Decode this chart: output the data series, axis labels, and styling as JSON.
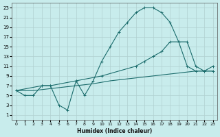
{
  "xlabel": "Humidex (Indice chaleur)",
  "background_color": "#c8ecec",
  "grid_color": "#b0d0d0",
  "line_color": "#1a6b6b",
  "xlim": [
    -0.5,
    23.5
  ],
  "ylim": [
    0,
    24
  ],
  "xticks": [
    0,
    1,
    2,
    3,
    4,
    5,
    6,
    7,
    8,
    9,
    10,
    11,
    12,
    13,
    14,
    15,
    16,
    17,
    18,
    19,
    20,
    21,
    22,
    23
  ],
  "yticks": [
    1,
    3,
    5,
    7,
    9,
    11,
    13,
    15,
    17,
    19,
    21,
    23
  ],
  "line1_x": [
    0,
    1,
    2,
    3,
    4,
    5,
    6,
    7,
    8,
    9,
    10,
    11,
    12,
    13,
    14,
    15,
    16,
    17,
    18,
    19,
    20,
    21,
    22,
    23
  ],
  "line1_y": [
    6,
    5,
    5,
    7,
    7,
    3,
    2,
    8,
    5,
    8,
    12,
    15,
    18,
    20,
    22,
    23,
    23,
    22,
    20,
    16,
    11,
    10,
    10,
    11
  ],
  "line2_x": [
    0,
    3,
    4,
    7,
    10,
    14,
    15,
    16,
    17,
    18,
    19,
    20,
    21,
    22,
    23
  ],
  "line2_y": [
    6,
    7,
    7,
    8,
    9,
    11,
    12,
    13,
    14,
    16,
    16,
    16,
    11,
    10,
    10
  ],
  "line3_x": [
    0,
    1,
    2,
    3,
    4,
    5,
    6,
    7,
    8,
    9,
    10,
    11,
    12,
    13,
    14,
    15,
    16,
    17,
    18,
    19,
    20,
    21,
    22,
    23
  ],
  "line3_y": [
    6,
    6,
    6,
    6.2,
    6.4,
    6.6,
    6.8,
    7.0,
    7.2,
    7.4,
    7.7,
    8.0,
    8.2,
    8.4,
    8.6,
    8.8,
    9.0,
    9.2,
    9.4,
    9.6,
    9.8,
    10.0,
    10.0,
    10.0
  ]
}
